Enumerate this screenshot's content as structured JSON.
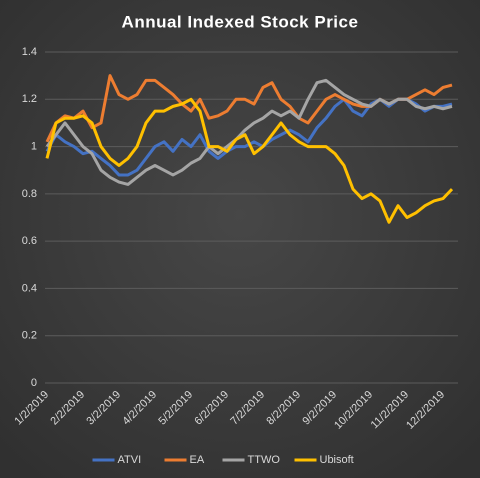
{
  "chart_data": {
    "type": "line",
    "title": "Annual Indexed Stock Price",
    "categories": [
      "1/2/2019",
      null,
      null,
      null,
      "2/2/2019",
      null,
      null,
      null,
      "3/2/2019",
      null,
      null,
      null,
      "4/2/2019",
      null,
      null,
      null,
      "5/2/2019",
      null,
      null,
      null,
      "6/2/2019",
      null,
      null,
      null,
      "7/2/2019",
      null,
      null,
      null,
      "8/2/2019",
      null,
      null,
      null,
      "9/2/2019",
      null,
      null,
      null,
      "10/2/2019",
      null,
      null,
      null,
      "11/2/2019",
      null,
      null,
      null,
      "12/2/2019",
      null
    ],
    "series": [
      {
        "name": "ATVI",
        "color": "#4472c4",
        "values": [
          0.98,
          1.05,
          1.02,
          1.0,
          0.97,
          0.98,
          0.95,
          0.92,
          0.88,
          0.88,
          0.9,
          0.95,
          1.0,
          1.02,
          0.98,
          1.03,
          1.0,
          1.05,
          0.98,
          0.95,
          0.98,
          1.0,
          1.0,
          1.02,
          1.0,
          1.03,
          1.05,
          1.07,
          1.05,
          1.02,
          1.08,
          1.12,
          1.17,
          1.2,
          1.15,
          1.13,
          1.18,
          1.2,
          1.17,
          1.2,
          1.2,
          1.18,
          1.15,
          1.17,
          1.17,
          1.18
        ]
      },
      {
        "name": "EA",
        "color": "#ed7d31",
        "values": [
          1.02,
          1.1,
          1.13,
          1.12,
          1.15,
          1.08,
          1.1,
          1.3,
          1.22,
          1.2,
          1.22,
          1.28,
          1.28,
          1.25,
          1.22,
          1.18,
          1.15,
          1.2,
          1.12,
          1.13,
          1.15,
          1.2,
          1.2,
          1.18,
          1.25,
          1.27,
          1.2,
          1.17,
          1.12,
          1.1,
          1.15,
          1.2,
          1.22,
          1.2,
          1.18,
          1.17,
          1.17,
          1.2,
          1.18,
          1.2,
          1.2,
          1.22,
          1.24,
          1.22,
          1.25,
          1.26
        ]
      },
      {
        "name": "TTWO",
        "color": "#a5a5a5",
        "values": [
          1.0,
          1.05,
          1.1,
          1.05,
          1.0,
          0.97,
          0.9,
          0.87,
          0.85,
          0.84,
          0.87,
          0.9,
          0.92,
          0.9,
          0.88,
          0.9,
          0.93,
          0.95,
          1.0,
          0.97,
          1.0,
          1.03,
          1.07,
          1.1,
          1.12,
          1.15,
          1.13,
          1.15,
          1.12,
          1.2,
          1.27,
          1.28,
          1.25,
          1.22,
          1.2,
          1.18,
          1.17,
          1.2,
          1.18,
          1.2,
          1.2,
          1.17,
          1.16,
          1.17,
          1.16,
          1.17
        ]
      },
      {
        "name": "Ubisoft",
        "color": "#ffc000",
        "values": [
          0.95,
          1.1,
          1.12,
          1.12,
          1.13,
          1.1,
          1.0,
          0.95,
          0.92,
          0.95,
          1.0,
          1.1,
          1.15,
          1.15,
          1.17,
          1.18,
          1.2,
          1.15,
          1.0,
          1.0,
          0.98,
          1.03,
          1.05,
          0.97,
          1.0,
          1.05,
          1.1,
          1.05,
          1.02,
          1.0,
          1.0,
          1.0,
          0.97,
          0.92,
          0.82,
          0.78,
          0.8,
          0.77,
          0.68,
          0.75,
          0.7,
          0.72,
          0.75,
          0.77,
          0.78,
          0.82
        ]
      }
    ],
    "ylim": [
      0,
      1.4
    ],
    "yticks": [
      0,
      0.2,
      0.4,
      0.6,
      0.8,
      1,
      1.2,
      1.4
    ],
    "grid": true,
    "legend": "bottom"
  }
}
